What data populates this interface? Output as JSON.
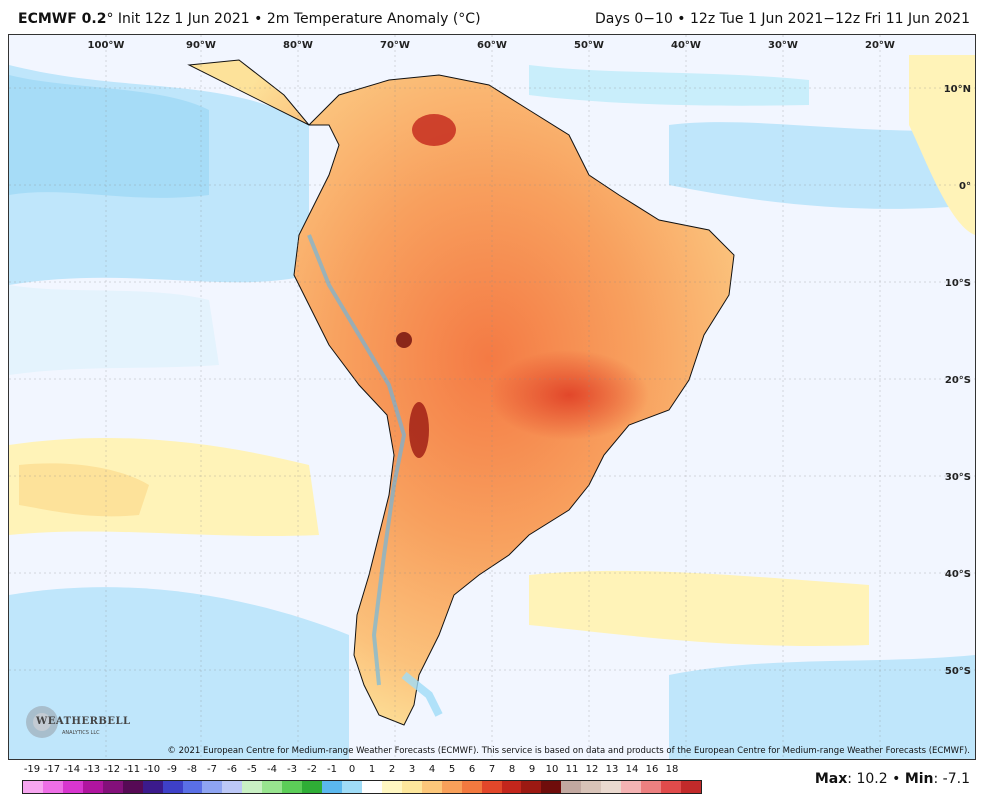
{
  "header": {
    "model": "ECMWF 0.2",
    "degree": "°",
    "init": " Init 12z 1 Jun 2021",
    "bullet": " • ",
    "variable": "2m Temperature Anomaly (°C)",
    "valid": "Days 0−10 • 12z Tue 1 Jun 2021−12z Fri 11 Jun 2021"
  },
  "map": {
    "lon_labels": [
      "100°W",
      "90°W",
      "80°W",
      "70°W",
      "60°W",
      "50°W",
      "40°W",
      "30°W",
      "20°W"
    ],
    "lat_labels": [
      "10°N",
      "0°",
      "10°S",
      "20°S",
      "30°S",
      "40°S",
      "50°S"
    ]
  },
  "copyright": "© 2021 European Centre for Medium-range Weather Forecasts (ECMWF). This service is based on data and products of the European Centre for Medium-range Weather Forecasts (ECMWF).",
  "colorbar": {
    "labels": [
      "-19",
      "-17",
      "-14",
      "-13",
      "-12",
      "-11",
      "-10",
      "-9",
      "-8",
      "-7",
      "-6",
      "-5",
      "-4",
      "-3",
      "-2",
      "-1",
      "0",
      "1",
      "2",
      "3",
      "4",
      "5",
      "6",
      "7",
      "8",
      "9",
      "10",
      "11",
      "12",
      "13",
      "14",
      "16",
      "18"
    ],
    "colors": [
      "#f7a6f0",
      "#ee6fe6",
      "#d836cf",
      "#b0159f",
      "#83107a",
      "#560a55",
      "#3b1a8c",
      "#3e40c8",
      "#5a6fe6",
      "#8ea4f2",
      "#bcc8f7",
      "#c9f0c4",
      "#98e48f",
      "#5ccd58",
      "#2fad36",
      "#5bb8ee",
      "#9fdcf7",
      "#ffffff",
      "#fff7c2",
      "#fde79c",
      "#fcc77a",
      "#f8a05a",
      "#f2793f",
      "#e2472a",
      "#c3261c",
      "#9c1912",
      "#6f0d0b",
      "#c2a8a0",
      "#d8c3b8",
      "#ead9cf",
      "#f4b3b3",
      "#ec8080",
      "#e04b4b",
      "#c22a2a"
    ]
  },
  "stats": {
    "max_label": "Max",
    "max_value": ": 10.2",
    "sep": " • ",
    "min_label": "Min",
    "min_value": ": -7.1"
  },
  "logo": {
    "text": "WEATHERBELL",
    "sub": "ANALYTICS LLC"
  }
}
